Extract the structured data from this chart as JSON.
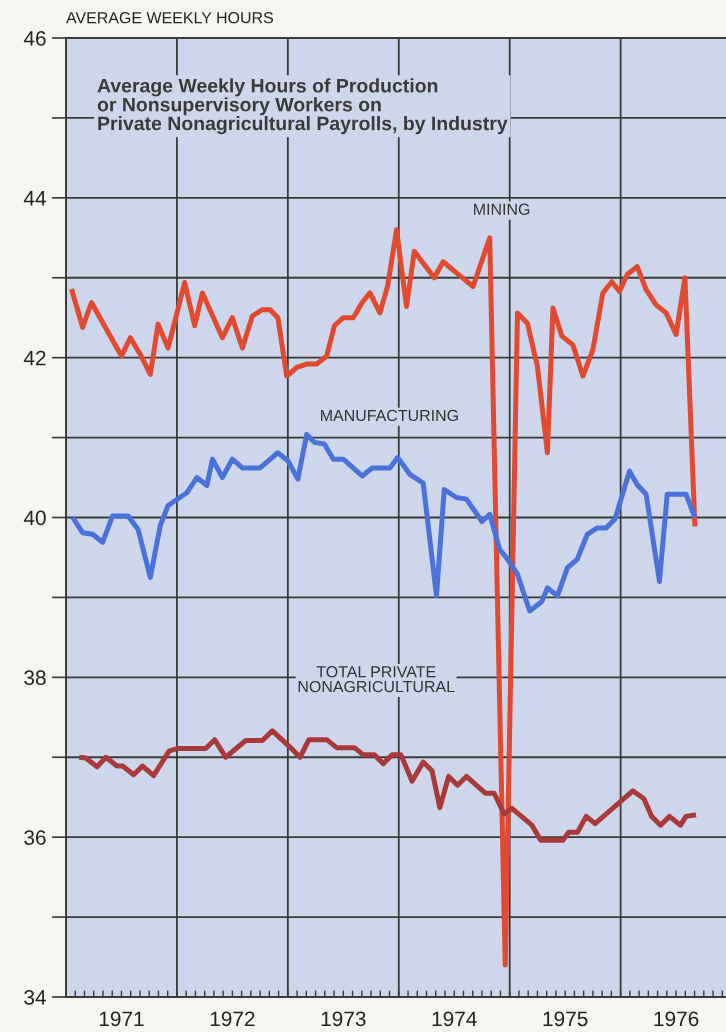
{
  "chart_data": {
    "type": "line",
    "title": "Average Weekly Hours of Production\nor Nonsupervisory Workers on\nPrivate Nonagricultural Payrolls, by Industry",
    "ylabel": "AVERAGE WEEKLY HOURS",
    "xlim": [
      1971,
      1976.95
    ],
    "xticks": [
      {
        "value": 1971,
        "label": null
      },
      {
        "value": 1971.5,
        "label": "1971"
      },
      {
        "value": 1972,
        "label": null
      },
      {
        "value": 1972.5,
        "label": "1972"
      },
      {
        "value": 1973,
        "label": null
      },
      {
        "value": 1973.5,
        "label": "1973"
      },
      {
        "value": 1974,
        "label": null
      },
      {
        "value": 1974.5,
        "label": "1974"
      },
      {
        "value": 1975,
        "label": null
      },
      {
        "value": 1975.5,
        "label": "1975"
      },
      {
        "value": 1976,
        "label": null
      },
      {
        "value": 1976.5,
        "label": "1976"
      }
    ],
    "ylim": [
      34,
      46
    ],
    "yticks": [
      34,
      {
        "value": 35,
        "label": null
      },
      36,
      {
        "value": 37,
        "label": null
      },
      38,
      {
        "value": 39,
        "label": null
      },
      40,
      {
        "value": 41,
        "label": null
      },
      42,
      {
        "value": 43,
        "label": null
      },
      44,
      {
        "value": 45,
        "label": null
      },
      46
    ],
    "grid": true,
    "legend": false,
    "series": [
      {
        "name": "MINING",
        "color": "#e04a30",
        "x": [
          1971.05,
          1971.15,
          1971.23,
          1971.33,
          1971.5,
          1971.58,
          1971.67,
          1971.76,
          1971.83,
          1971.92,
          1972.07,
          1972.16,
          1972.23,
          1972.41,
          1972.5,
          1972.59,
          1972.68,
          1972.77,
          1972.84,
          1972.91,
          1972.99,
          1973.08,
          1973.17,
          1973.26,
          1973.35,
          1973.42,
          1973.5,
          1973.59,
          1973.67,
          1973.74,
          1973.83,
          1973.9,
          1973.98,
          1974.07,
          1974.14,
          1974.32,
          1974.4,
          1974.52,
          1974.67,
          1974.82,
          1974.96,
          1975.07,
          1975.16,
          1975.25,
          1975.34,
          1975.39,
          1975.47,
          1975.57,
          1975.66,
          1975.75,
          1975.84,
          1975.92,
          1975.99,
          1976.06,
          1976.15,
          1976.23,
          1976.32,
          1976.41,
          1976.5,
          1976.58,
          1976.67
        ],
        "values": [
          42.86,
          42.38,
          42.69,
          42.44,
          42.02,
          42.25,
          42.04,
          41.79,
          42.42,
          42.12,
          42.94,
          42.4,
          42.81,
          42.25,
          42.5,
          42.12,
          42.52,
          42.6,
          42.6,
          42.5,
          41.77,
          41.88,
          41.92,
          41.92,
          42.02,
          42.4,
          42.5,
          42.5,
          42.69,
          42.81,
          42.56,
          42.9,
          43.6,
          42.64,
          43.33,
          43.0,
          43.2,
          43.06,
          42.89,
          43.5,
          34.4,
          42.56,
          42.43,
          41.89,
          40.81,
          42.62,
          42.27,
          42.16,
          41.77,
          42.1,
          42.81,
          42.95,
          42.83,
          43.04,
          43.14,
          42.85,
          42.66,
          42.56,
          42.29,
          43.0,
          39.89
        ]
      },
      {
        "name": "MANUFACTURING",
        "color": "#4a72d8",
        "x": [
          1971.06,
          1971.15,
          1971.24,
          1971.33,
          1971.42,
          1971.56,
          1971.65,
          1971.76,
          1971.85,
          1971.92,
          1972.09,
          1972.18,
          1972.27,
          1972.32,
          1972.41,
          1972.5,
          1972.59,
          1972.75,
          1972.91,
          1973.0,
          1973.09,
          1973.17,
          1973.24,
          1973.33,
          1973.41,
          1973.5,
          1973.67,
          1973.76,
          1973.92,
          1973.99,
          1974.1,
          1974.22,
          1974.34,
          1974.41,
          1974.52,
          1974.61,
          1974.75,
          1974.82,
          1974.91,
          1974.98,
          1975.07,
          1975.18,
          1975.29,
          1975.34,
          1975.43,
          1975.52,
          1975.61,
          1975.7,
          1975.79,
          1975.87,
          1975.95,
          1976.08,
          1976.15,
          1976.23,
          1976.35,
          1976.42,
          1976.59,
          1976.67
        ],
        "values": [
          40.0,
          39.81,
          39.79,
          39.69,
          40.02,
          40.02,
          39.85,
          39.25,
          39.9,
          40.15,
          40.31,
          40.5,
          40.4,
          40.73,
          40.5,
          40.73,
          40.62,
          40.62,
          40.81,
          40.71,
          40.48,
          41.04,
          40.94,
          40.92,
          40.73,
          40.73,
          40.52,
          40.62,
          40.62,
          40.75,
          40.54,
          40.43,
          39.02,
          40.35,
          40.25,
          40.23,
          39.95,
          40.04,
          39.6,
          39.48,
          39.29,
          38.83,
          38.95,
          39.12,
          39.02,
          39.37,
          39.48,
          39.79,
          39.87,
          39.87,
          39.98,
          40.58,
          40.41,
          40.29,
          39.2,
          40.29,
          40.29,
          40.0
        ]
      },
      {
        "name": "TOTAL PRIVATE\nNONAGRICULTURAL",
        "color": "#a83a3a",
        "x": [
          1971.12,
          1971.18,
          1971.28,
          1971.36,
          1971.46,
          1971.51,
          1971.61,
          1971.69,
          1971.79,
          1971.93,
          1972.01,
          1972.26,
          1972.34,
          1972.44,
          1972.62,
          1972.77,
          1972.86,
          1973.01,
          1973.11,
          1973.19,
          1973.35,
          1973.44,
          1973.6,
          1973.68,
          1973.78,
          1973.86,
          1973.94,
          1974.02,
          1974.12,
          1974.22,
          1974.3,
          1974.37,
          1974.45,
          1974.53,
          1974.61,
          1974.78,
          1974.86,
          1974.95,
          1975.02,
          1975.2,
          1975.28,
          1975.48,
          1975.53,
          1975.61,
          1975.69,
          1975.77,
          1976.11,
          1976.21,
          1976.28,
          1976.36,
          1976.44,
          1976.54,
          1976.59,
          1976.68
        ],
        "values": [
          37.0,
          36.99,
          36.88,
          37.0,
          36.89,
          36.89,
          36.78,
          36.89,
          36.77,
          37.08,
          37.11,
          37.11,
          37.22,
          37.0,
          37.21,
          37.21,
          37.33,
          37.14,
          37.0,
          37.22,
          37.22,
          37.12,
          37.12,
          37.03,
          37.03,
          36.92,
          37.03,
          37.03,
          36.7,
          36.94,
          36.83,
          36.37,
          36.76,
          36.65,
          36.76,
          36.55,
          36.55,
          36.29,
          36.36,
          36.15,
          35.96,
          35.96,
          36.06,
          36.06,
          36.26,
          36.17,
          36.58,
          36.48,
          36.26,
          36.15,
          36.26,
          36.15,
          36.26,
          36.28
        ]
      }
    ]
  }
}
